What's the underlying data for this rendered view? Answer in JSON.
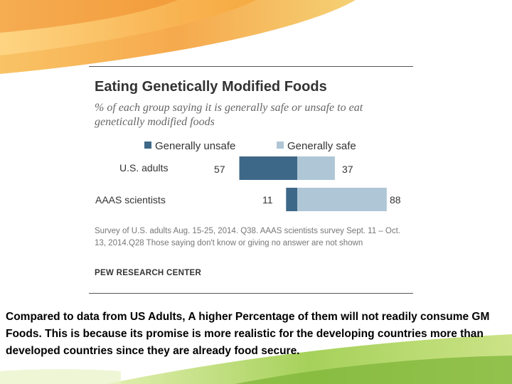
{
  "chart_data": {
    "type": "bar",
    "orientation": "horizontal",
    "stacked": "diverging",
    "title": "Eating Genetically Modified Foods",
    "subtitle": "% of each group saying it is generally safe or unsafe to eat genetically modified foods",
    "categories": [
      "U.S. adults",
      "AAAS scientists"
    ],
    "series": [
      {
        "name": "Generally unsafe",
        "values": [
          57,
          11
        ],
        "color": "#3e6888"
      },
      {
        "name": "Generally safe",
        "values": [
          37,
          88
        ],
        "color": "#afc6d6"
      }
    ],
    "legend_position": "top",
    "grid": false,
    "note": "Survey of U.S. adults Aug. 15-25, 2014. Q38. AAAS scientists survey Sept. 11 – Oct. 13, 2014.Q28 Those saying don't know or giving no answer are not shown",
    "source": "PEW RESEARCH CENTER"
  },
  "caption": "Compared to data from US Adults, A higher Percentage of them will not readily consume GM Foods. This is because its promise is more realistic for the developing countries more than developed countries since they are already food secure."
}
